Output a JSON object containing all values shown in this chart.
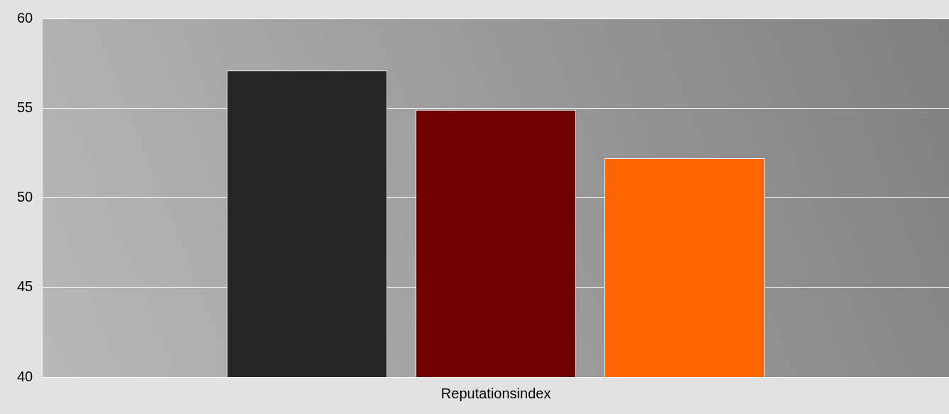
{
  "chart_data": {
    "type": "bar",
    "categories": [
      "Reputationsindex"
    ],
    "series": [
      {
        "color": "#262626",
        "values": [
          57.1
        ]
      },
      {
        "color": "#6e0000",
        "values": [
          54.9
        ]
      },
      {
        "color": "#ff6600",
        "values": [
          52.2
        ]
      }
    ],
    "ylim": [
      40,
      60
    ],
    "yticks": [
      40,
      45,
      50,
      55,
      60
    ],
    "grid": "y",
    "legend": false
  }
}
